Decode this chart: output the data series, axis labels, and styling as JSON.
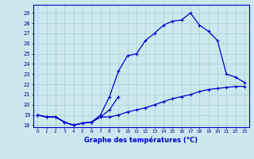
{
  "xlabel": "Graphe des températures (°C)",
  "x": [
    0,
    1,
    2,
    3,
    4,
    5,
    6,
    7,
    8,
    9,
    10,
    11,
    12,
    13,
    14,
    15,
    16,
    17,
    18,
    19,
    20,
    21,
    22,
    23
  ],
  "line1": [
    19.0,
    18.8,
    18.8,
    18.3,
    18.0,
    18.2,
    18.3,
    18.8,
    18.8,
    19.0,
    19.3,
    19.5,
    19.7,
    20.0,
    20.3,
    20.6,
    20.8,
    21.0,
    21.3,
    21.5,
    21.6,
    21.7,
    21.8,
    21.8
  ],
  "line2": [
    19.0,
    18.8,
    18.8,
    18.3,
    18.0,
    18.2,
    18.3,
    19.0,
    20.8,
    23.3,
    24.8,
    25.0,
    26.3,
    27.0,
    27.8,
    28.2,
    28.3,
    29.0,
    27.8,
    27.2,
    26.3,
    23.0,
    22.7,
    22.2
  ],
  "line3": [
    19.0,
    18.8,
    18.8,
    18.3,
    18.0,
    18.2,
    18.3,
    18.8,
    19.5,
    20.8,
    null,
    null,
    null,
    null,
    null,
    null,
    null,
    null,
    null,
    null,
    null,
    null,
    null,
    null
  ],
  "ylim_min": 17.8,
  "ylim_max": 29.8,
  "yticks": [
    18,
    19,
    20,
    21,
    22,
    23,
    24,
    25,
    26,
    27,
    28,
    29
  ],
  "xticks": [
    0,
    1,
    2,
    3,
    4,
    5,
    6,
    7,
    8,
    9,
    10,
    11,
    12,
    13,
    14,
    15,
    16,
    17,
    18,
    19,
    20,
    21,
    22,
    23
  ],
  "line_color": "#0000cc",
  "bg_color": "#cce8ee",
  "grid_color": "#aaccd4",
  "tick_color": "#000088"
}
